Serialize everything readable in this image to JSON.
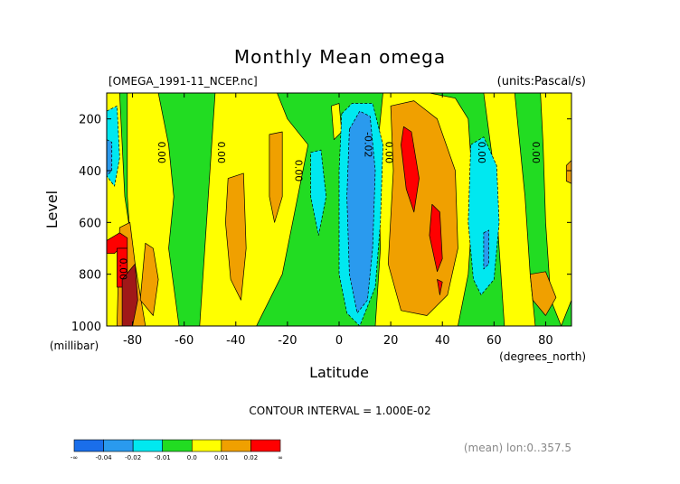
{
  "chart_data": {
    "type": "heatmap",
    "title": "Monthly Mean omega",
    "file_label": "[OMEGA_1991-11_NCEP.nc]",
    "units_label": "(units:Pascal/s)",
    "xlabel": "Latitude",
    "xunits": "(degrees_north)",
    "ylabel": "Level",
    "yunits": "(millibar)",
    "xlim": [
      -90,
      90
    ],
    "ylim": [
      1000,
      100
    ],
    "x_ticks": [
      -80,
      -60,
      -40,
      -20,
      0,
      20,
      40,
      60,
      80
    ],
    "x_tick_labels": [
      "-80",
      "-60",
      "-40",
      "-20",
      "0",
      "20",
      "40",
      "60",
      "80"
    ],
    "y_ticks": [
      200,
      400,
      600,
      800,
      1000
    ],
    "y_tick_labels": [
      "200",
      "400",
      "600",
      "800",
      "1000"
    ],
    "contour_interval_text": "CONTOUR INTERVAL = 1.000E-02",
    "footnote": "(mean) lon:0..357.5",
    "legend": {
      "bins": [
        {
          "color": "#1a6eea"
        },
        {
          "color": "#2a9aee"
        },
        {
          "color": "#00e8f0"
        },
        {
          "color": "#22dc22"
        },
        {
          "color": "#ffff00"
        },
        {
          "color": "#f0a000"
        },
        {
          "color": "#ff0000"
        }
      ],
      "tick_labels": [
        "-∞",
        "-0.04",
        "-0.02",
        "-0.01",
        "0.0",
        "0.01",
        "0.02",
        "∞"
      ]
    },
    "contour_labels": [
      {
        "text": "0.00",
        "x": -70,
        "y": 330
      },
      {
        "text": "0.00",
        "x": -47,
        "y": 330
      },
      {
        "text": "0.00",
        "x": -17,
        "y": 400
      },
      {
        "text": "0.00",
        "x": 18,
        "y": 330
      },
      {
        "text": "0.00",
        "x": 54,
        "y": 330
      },
      {
        "text": "0.00",
        "x": 75,
        "y": 330
      },
      {
        "text": "0.00",
        "x": -85,
        "y": 780
      },
      {
        "text": "-0.02",
        "x": 10,
        "y": 300
      }
    ],
    "regions": [
      {
        "level": "zero_pos",
        "color": "#ffff00",
        "points": [
          [
            -90,
            100
          ],
          [
            -85,
            100
          ],
          [
            -83,
            500
          ],
          [
            -80,
            700
          ],
          [
            -77,
            850
          ],
          [
            -73,
            1000
          ],
          [
            -90,
            1000
          ]
        ]
      },
      {
        "level": "zero_pos",
        "color": "#ffff00",
        "points": [
          [
            -82,
            100
          ],
          [
            -70,
            100
          ],
          [
            -66,
            300
          ],
          [
            -64,
            500
          ],
          [
            -66,
            700
          ],
          [
            -62,
            1000
          ],
          [
            -78,
            1000
          ],
          [
            -80,
            800
          ],
          [
            -82,
            500
          ]
        ]
      },
      {
        "level": "zero_pos",
        "color": "#ffff00",
        "points": [
          [
            -48,
            100
          ],
          [
            -24,
            100
          ],
          [
            -20,
            200
          ],
          [
            -12,
            300
          ],
          [
            -18,
            600
          ],
          [
            -22,
            800
          ],
          [
            -32,
            1000
          ],
          [
            -54,
            1000
          ],
          [
            -52,
            700
          ],
          [
            -50,
            400
          ]
        ]
      },
      {
        "level": "zero_pos",
        "color": "#ffff00",
        "points": [
          [
            17,
            100
          ],
          [
            35,
            100
          ],
          [
            45,
            120
          ],
          [
            50,
            200
          ],
          [
            52,
            500
          ],
          [
            50,
            800
          ],
          [
            46,
            1000
          ],
          [
            14,
            1000
          ],
          [
            16,
            700
          ],
          [
            15,
            300
          ]
        ]
      },
      {
        "level": "zero_pos",
        "color": "#ffff00",
        "points": [
          [
            56,
            100
          ],
          [
            68,
            100
          ],
          [
            70,
            300
          ],
          [
            72,
            500
          ],
          [
            74,
            800
          ],
          [
            76,
            1000
          ],
          [
            64,
            1000
          ],
          [
            62,
            700
          ],
          [
            60,
            400
          ]
        ]
      },
      {
        "level": "zero_pos",
        "color": "#ffff00",
        "points": [
          [
            78,
            100
          ],
          [
            90,
            100
          ],
          [
            90,
            900
          ],
          [
            86,
            1000
          ],
          [
            82,
            900
          ],
          [
            80,
            600
          ],
          [
            79,
            300
          ]
        ]
      },
      {
        "level": "zero_pos",
        "color": "#ffff00",
        "points": [
          [
            -3,
            150
          ],
          [
            0,
            140
          ],
          [
            1,
            250
          ],
          [
            -2,
            280
          ]
        ]
      },
      {
        "level": "pos1",
        "color": "#f0a000",
        "points": [
          [
            -85,
            620
          ],
          [
            -81,
            600
          ],
          [
            -79,
            760
          ],
          [
            -77,
            880
          ],
          [
            -75,
            1000
          ],
          [
            -86,
            1000
          ]
        ]
      },
      {
        "level": "pos1",
        "color": "#f0a000",
        "points": [
          [
            -75,
            680
          ],
          [
            -72,
            700
          ],
          [
            -70,
            820
          ],
          [
            -72,
            960
          ],
          [
            -77,
            900
          ]
        ]
      },
      {
        "level": "pos1",
        "color": "#f0a000",
        "points": [
          [
            -43,
            430
          ],
          [
            -37,
            410
          ],
          [
            -36,
            700
          ],
          [
            -38,
            900
          ],
          [
            -42,
            820
          ],
          [
            -44,
            600
          ]
        ]
      },
      {
        "level": "pos1",
        "color": "#f0a000",
        "points": [
          [
            -27,
            260
          ],
          [
            -22,
            250
          ],
          [
            -22,
            500
          ],
          [
            -25,
            600
          ],
          [
            -27,
            500
          ]
        ]
      },
      {
        "level": "pos1",
        "color": "#f0a000",
        "points": [
          [
            20,
            150
          ],
          [
            29,
            130
          ],
          [
            38,
            200
          ],
          [
            45,
            400
          ],
          [
            46,
            700
          ],
          [
            42,
            880
          ],
          [
            34,
            960
          ],
          [
            24,
            940
          ],
          [
            19,
            760
          ],
          [
            21,
            400
          ]
        ]
      },
      {
        "level": "pos1",
        "color": "#f0a000",
        "points": [
          [
            74,
            800
          ],
          [
            80,
            790
          ],
          [
            84,
            890
          ],
          [
            80,
            960
          ],
          [
            75,
            900
          ]
        ]
      },
      {
        "level": "pos1",
        "color": "#f0a000",
        "points": [
          [
            88,
            380
          ],
          [
            90,
            360
          ],
          [
            90,
            450
          ],
          [
            88,
            440
          ]
        ]
      },
      {
        "level": "pos2",
        "color": "#ff0000",
        "points": [
          [
            -90,
            670
          ],
          [
            -85,
            640
          ],
          [
            -82,
            660
          ],
          [
            -82,
            700
          ],
          [
            -85,
            700
          ],
          [
            -87,
            720
          ],
          [
            -90,
            720
          ]
        ]
      },
      {
        "level": "pos2",
        "color": "#ff0000",
        "points": [
          [
            -86,
            700
          ],
          [
            -82,
            700
          ],
          [
            -82,
            850
          ],
          [
            -86,
            850
          ]
        ]
      },
      {
        "level": "pos2",
        "color": "#ff0000",
        "points": [
          [
            25,
            230
          ],
          [
            28,
            250
          ],
          [
            31,
            430
          ],
          [
            29,
            560
          ],
          [
            26,
            470
          ],
          [
            24,
            300
          ]
        ]
      },
      {
        "level": "pos2",
        "color": "#ff0000",
        "points": [
          [
            36,
            530
          ],
          [
            39,
            560
          ],
          [
            40,
            740
          ],
          [
            38,
            790
          ],
          [
            35,
            650
          ]
        ]
      },
      {
        "level": "pos2",
        "color": "#ff0000",
        "points": [
          [
            38,
            820
          ],
          [
            40,
            830
          ],
          [
            39,
            880
          ]
        ]
      },
      {
        "level": "pos3",
        "color": "#a01818",
        "points": [
          [
            -84,
            820
          ],
          [
            -79,
            760
          ],
          [
            -78,
            900
          ],
          [
            -80,
            1000
          ],
          [
            -84,
            1000
          ]
        ]
      },
      {
        "level": "neg1",
        "color": "#00e8f0",
        "points": [
          [
            -90,
            170
          ],
          [
            -86,
            150
          ],
          [
            -85,
            350
          ],
          [
            -87,
            460
          ],
          [
            -90,
            420
          ]
        ]
      },
      {
        "level": "neg1",
        "color": "#00e8f0",
        "points": [
          [
            -11,
            330
          ],
          [
            -7,
            320
          ],
          [
            -5,
            500
          ],
          [
            -8,
            650
          ],
          [
            -11,
            500
          ]
        ]
      },
      {
        "level": "neg1",
        "color": "#00e8f0",
        "points": [
          [
            1,
            180
          ],
          [
            5,
            140
          ],
          [
            13,
            140
          ],
          [
            17,
            300
          ],
          [
            16,
            600
          ],
          [
            14,
            850
          ],
          [
            8,
            1000
          ],
          [
            3,
            950
          ],
          [
            0,
            800
          ],
          [
            0,
            400
          ]
        ]
      },
      {
        "level": "neg1",
        "color": "#00e8f0",
        "points": [
          [
            51,
            300
          ],
          [
            56,
            270
          ],
          [
            61,
            380
          ],
          [
            62,
            600
          ],
          [
            60,
            820
          ],
          [
            55,
            880
          ],
          [
            52,
            820
          ],
          [
            50,
            600
          ]
        ]
      },
      {
        "level": "neg2",
        "color": "#2a9aee",
        "points": [
          [
            4,
            240
          ],
          [
            8,
            170
          ],
          [
            12,
            190
          ],
          [
            14,
            400
          ],
          [
            13,
            700
          ],
          [
            11,
            900
          ],
          [
            7,
            950
          ],
          [
            4,
            800
          ],
          [
            3,
            500
          ]
        ]
      },
      {
        "level": "neg2",
        "color": "#2a9aee",
        "points": [
          [
            -90,
            280
          ],
          [
            -88,
            290
          ],
          [
            -88,
            400
          ],
          [
            -90,
            420
          ]
        ]
      },
      {
        "level": "neg2",
        "color": "#2a9aee",
        "points": [
          [
            56,
            640
          ],
          [
            58,
            630
          ],
          [
            58,
            760
          ],
          [
            56,
            780
          ]
        ]
      }
    ]
  }
}
